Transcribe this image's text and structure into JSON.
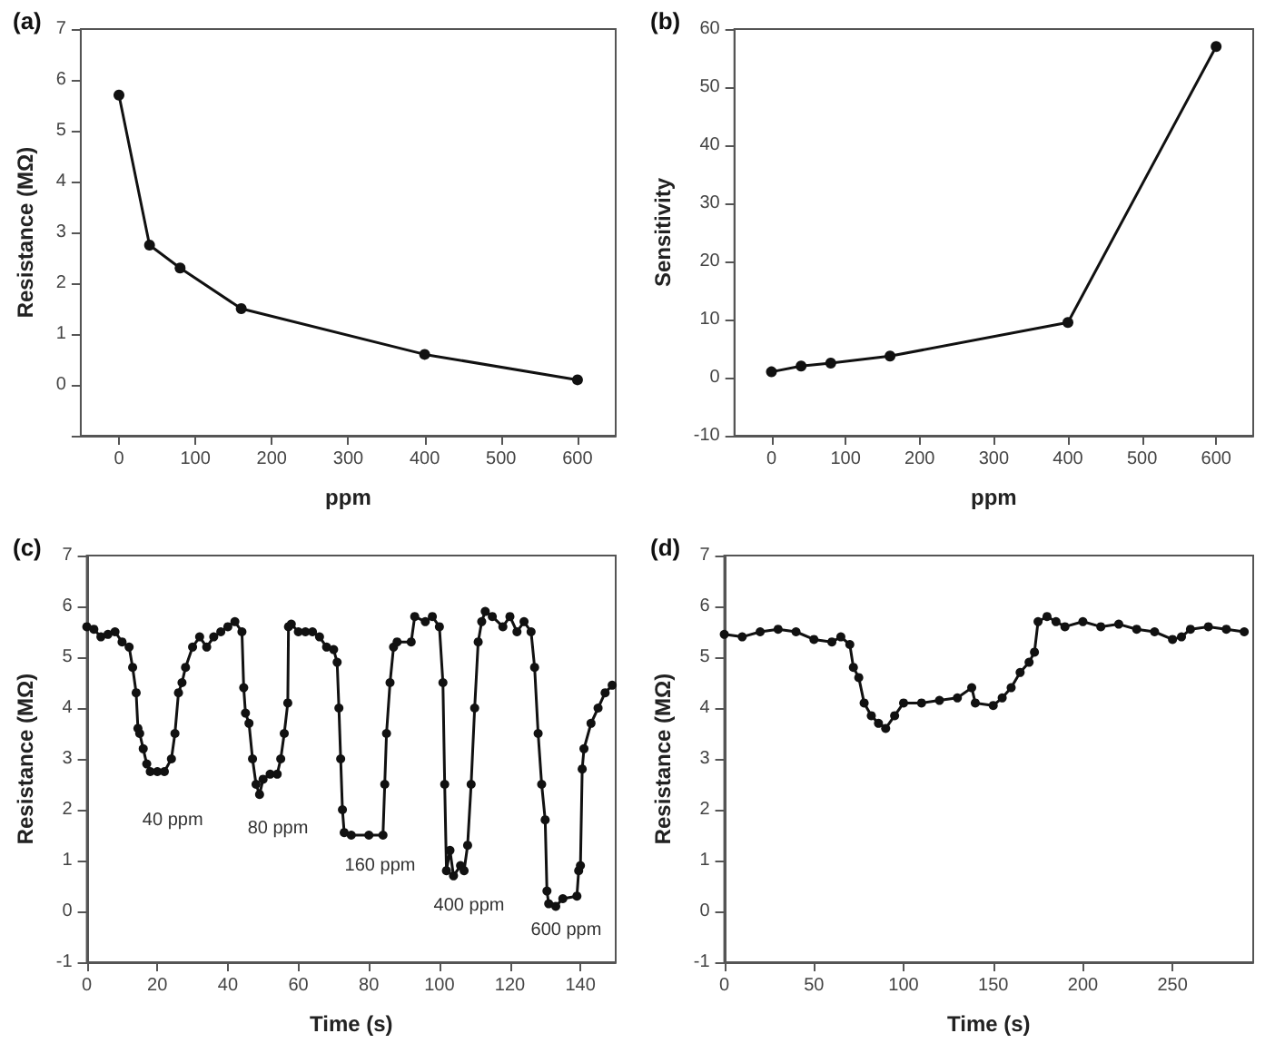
{
  "chart_data": [
    {
      "type": "line",
      "title": "(a)",
      "xlabel": "ppm",
      "ylabel": "Resistance (MΩ)",
      "x": [
        0,
        40,
        80,
        160,
        400,
        600
      ],
      "series": [
        {
          "color": "#111111",
          "values": [
            5.7,
            2.75,
            2.3,
            1.5,
            0.6,
            0.1
          ]
        }
      ],
      "xlim": [
        -50,
        650
      ],
      "xticks": [
        0,
        100,
        200,
        300,
        400,
        500,
        600
      ],
      "ylim": [
        -1,
        7
      ],
      "yticks": [
        {
          "value": -1,
          "label": null
        },
        0,
        1,
        2,
        3,
        4,
        5,
        6,
        7
      ],
      "marker": "circle",
      "line_style": "solid",
      "grid": false
    },
    {
      "type": "line",
      "title": "(b)",
      "xlabel": "ppm",
      "ylabel": "Sensitivity",
      "x": [
        0,
        40,
        80,
        160,
        400,
        600
      ],
      "series": [
        {
          "color": "#111111",
          "values": [
            1,
            2,
            2.5,
            3.7,
            9.5,
            57
          ]
        }
      ],
      "xlim": [
        -50,
        650
      ],
      "xticks": [
        0,
        100,
        200,
        300,
        400,
        500,
        600
      ],
      "ylim": [
        -10,
        60
      ],
      "yticks": [
        -10,
        0,
        10,
        20,
        30,
        40,
        50,
        60
      ],
      "marker": "circle",
      "line_style": "solid",
      "grid": false
    },
    {
      "type": "line",
      "title": "(c)",
      "xlabel": "Time (s)",
      "ylabel": "Resistance (MΩ)",
      "x": [
        0,
        2,
        4,
        6,
        8,
        10,
        12,
        13,
        14,
        14.5,
        15,
        16,
        17,
        18,
        20,
        22,
        24,
        25,
        26,
        27,
        28,
        30,
        32,
        34,
        36,
        38,
        40,
        42,
        44,
        44.5,
        45,
        46,
        47,
        48,
        49,
        50,
        52,
        54,
        55,
        56,
        57,
        57.2,
        58,
        60,
        62,
        64,
        66,
        68,
        70,
        71,
        71.5,
        72,
        72.5,
        73,
        75,
        80,
        84,
        84.5,
        85,
        86,
        87,
        88,
        92,
        93,
        96,
        98,
        100,
        101,
        101.5,
        102,
        103,
        104,
        106,
        107,
        108,
        109,
        110,
        111,
        112,
        113,
        115,
        118,
        120,
        122,
        124,
        126,
        127,
        128,
        129,
        130,
        130.5,
        131,
        133,
        135,
        139,
        139.5,
        140,
        140.5,
        141,
        143,
        145,
        147,
        149
      ],
      "series": [
        {
          "color": "#111111",
          "values": [
            5.6,
            5.55,
            5.4,
            5.45,
            5.5,
            5.3,
            5.2,
            4.8,
            4.3,
            3.6,
            3.5,
            3.2,
            2.9,
            2.75,
            2.75,
            2.75,
            3.0,
            3.5,
            4.3,
            4.5,
            4.8,
            5.2,
            5.4,
            5.2,
            5.4,
            5.5,
            5.6,
            5.7,
            5.5,
            4.4,
            3.9,
            3.7,
            3.0,
            2.5,
            2.3,
            2.6,
            2.7,
            2.7,
            3.0,
            3.5,
            4.1,
            5.6,
            5.65,
            5.5,
            5.5,
            5.5,
            5.4,
            5.2,
            5.15,
            4.9,
            4.0,
            3.0,
            2.0,
            1.55,
            1.5,
            1.5,
            1.5,
            2.5,
            3.5,
            4.5,
            5.2,
            5.3,
            5.3,
            5.8,
            5.7,
            5.8,
            5.6,
            4.5,
            2.5,
            0.8,
            1.2,
            0.7,
            0.9,
            0.8,
            1.3,
            2.5,
            4.0,
            5.3,
            5.7,
            5.9,
            5.8,
            5.6,
            5.8,
            5.5,
            5.7,
            5.5,
            4.8,
            3.5,
            2.5,
            1.8,
            0.4,
            0.15,
            0.1,
            0.25,
            0.3,
            0.8,
            0.9,
            2.8,
            3.2,
            3.7,
            4.0,
            4.3,
            4.45
          ]
        }
      ],
      "xlim": [
        0,
        150
      ],
      "xticks": [
        0,
        20,
        40,
        60,
        80,
        100,
        120,
        140
      ],
      "ylim": [
        -1,
        7
      ],
      "yticks": [
        -1,
        0,
        1,
        2,
        3,
        4,
        5,
        6,
        7
      ],
      "marker": "circle",
      "line_style": "solid",
      "grid": false,
      "annotations": [
        "40 ppm",
        "80 ppm",
        "160 ppm",
        "400 ppm",
        "600 ppm"
      ]
    },
    {
      "type": "line",
      "title": "(d)",
      "xlabel": "Time (s)",
      "ylabel": "Resistance (MΩ)",
      "x": [
        0,
        10,
        20,
        30,
        40,
        50,
        60,
        65,
        70,
        72,
        75,
        78,
        82,
        86,
        90,
        95,
        100,
        110,
        120,
        130,
        138,
        140,
        150,
        155,
        160,
        165,
        170,
        173,
        175,
        180,
        185,
        190,
        200,
        210,
        220,
        230,
        240,
        250,
        255,
        260,
        270,
        280,
        290
      ],
      "series": [
        {
          "color": "#111111",
          "values": [
            5.45,
            5.4,
            5.5,
            5.55,
            5.5,
            5.35,
            5.3,
            5.4,
            5.25,
            4.8,
            4.6,
            4.1,
            3.85,
            3.7,
            3.6,
            3.85,
            4.1,
            4.1,
            4.15,
            4.2,
            4.4,
            4.1,
            4.05,
            4.2,
            4.4,
            4.7,
            4.9,
            5.1,
            5.7,
            5.8,
            5.7,
            5.6,
            5.7,
            5.6,
            5.65,
            5.55,
            5.5,
            5.35,
            5.4,
            5.55,
            5.6,
            5.55,
            5.5
          ]
        }
      ],
      "xlim": [
        0,
        295
      ],
      "xticks": [
        0,
        50,
        100,
        150,
        200,
        250
      ],
      "ylim": [
        -1,
        7
      ],
      "yticks": [
        -1,
        0,
        1,
        2,
        3,
        4,
        5,
        6,
        7
      ],
      "marker": "circle",
      "line_style": "solid",
      "grid": false
    }
  ]
}
